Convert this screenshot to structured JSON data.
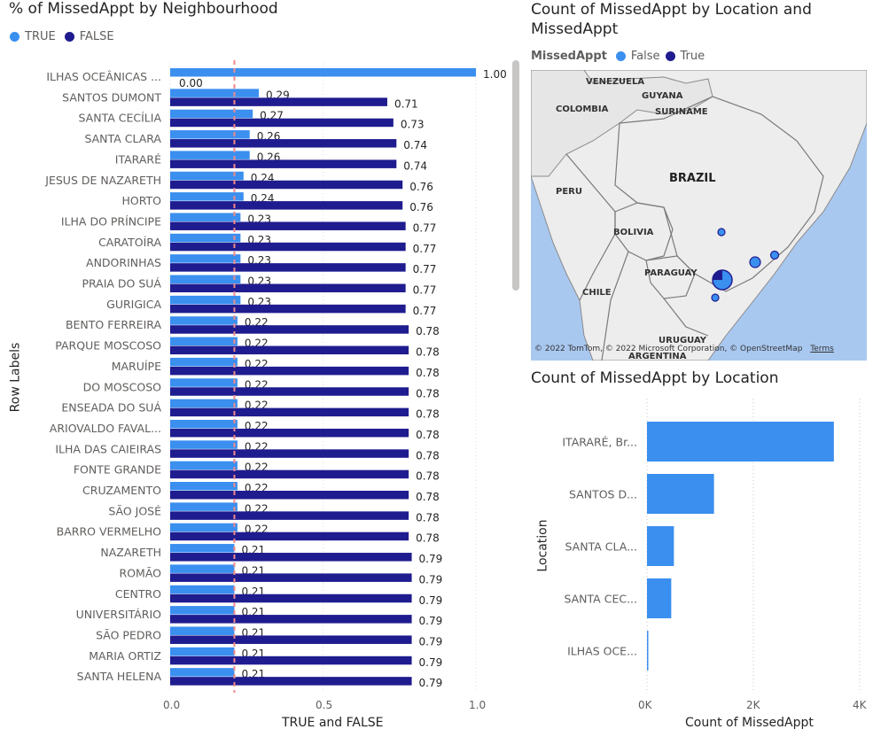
{
  "left_chart": {
    "title": "% of MissedAppt by Neighbourhood",
    "legend": [
      {
        "label": "TRUE",
        "color": "#3a8fef"
      },
      {
        "label": "FALSE",
        "color": "#1f1c8f"
      }
    ],
    "ylabel": "Row Labels",
    "xlabel": "TRUE and FALSE",
    "xticks": [
      "0.0",
      "0.5",
      "1.0"
    ]
  },
  "map": {
    "title": "Count of MissedAppt by Location and MissedAppt",
    "legend_title": "MissedAppt",
    "legend": [
      {
        "label": "False",
        "color": "#3a8fef"
      },
      {
        "label": "True",
        "color": "#1f1c8f"
      }
    ],
    "countries": [
      "VENEZUELA",
      "GUYANA",
      "SURINAME",
      "COLOMBIA",
      "BRAZIL",
      "PERU",
      "BOLIVIA",
      "PARAGUAY",
      "CHILE",
      "URUGUAY",
      "ARGENTINA"
    ],
    "copyright": "© 2022 TomTom, © 2022 Microsoft Corporation, © OpenStreetMap",
    "terms": "Terms"
  },
  "right_chart": {
    "title": "Count of MissedAppt by Location",
    "ylabel": "Location",
    "xlabel": "Count of MissedAppt",
    "xticks": [
      "0K",
      "2K",
      "4K"
    ]
  },
  "chart_data": [
    {
      "type": "bar",
      "orientation": "horizontal",
      "title": "% of MissedAppt by Neighbourhood",
      "xlabel": "TRUE and FALSE",
      "ylabel": "Row Labels",
      "xlim": [
        0,
        1
      ],
      "legend": "top-left",
      "categories": [
        "ILHAS OCEÂNICAS ...",
        "SANTOS DUMONT",
        "SANTA CECÍLIA",
        "SANTA CLARA",
        "ITARARÉ",
        "JESUS DE NAZARETH",
        "HORTO",
        "ILHA DO PRÍNCIPE",
        "CARATOÍRA",
        "ANDORINHAS",
        "PRAIA DO SUÁ",
        "GURIGICA",
        "BENTO FERREIRA",
        "PARQUE MOSCOSO",
        "MARUÍPE",
        "DO MOSCOSO",
        "ENSEADA DO SUÁ",
        "ARIOVALDO FAVAL...",
        "ILHA DAS CAIEIRAS",
        "FONTE GRANDE",
        "CRUZAMENTO",
        "SÃO JOSÉ",
        "BARRO VERMELHO",
        "NAZARETH",
        "ROMÃO",
        "CENTRO",
        "UNIVERSITÁRIO",
        "SÃO PEDRO",
        "MARIA ORTIZ",
        "SANTA HELENA"
      ],
      "series": [
        {
          "name": "TRUE",
          "values": [
            1.0,
            0.29,
            0.27,
            0.26,
            0.26,
            0.24,
            0.24,
            0.23,
            0.23,
            0.23,
            0.23,
            0.23,
            0.22,
            0.22,
            0.22,
            0.22,
            0.22,
            0.22,
            0.22,
            0.22,
            0.22,
            0.22,
            0.22,
            0.21,
            0.21,
            0.21,
            0.21,
            0.21,
            0.21,
            0.21
          ]
        },
        {
          "name": "FALSE",
          "values": [
            0.0,
            0.71,
            0.73,
            0.74,
            0.74,
            0.76,
            0.76,
            0.77,
            0.77,
            0.77,
            0.77,
            0.77,
            0.78,
            0.78,
            0.78,
            0.78,
            0.78,
            0.78,
            0.78,
            0.78,
            0.78,
            0.78,
            0.78,
            0.79,
            0.79,
            0.79,
            0.79,
            0.79,
            0.79,
            0.79
          ]
        }
      ],
      "reference_line": 0.21
    },
    {
      "type": "bar",
      "orientation": "horizontal",
      "title": "Count of MissedAppt by Location",
      "xlabel": "Count of MissedAppt",
      "ylabel": "Location",
      "xlim": [
        0,
        4000
      ],
      "categories": [
        "ITARARÉ, Br...",
        "SANTOS D...",
        "SANTA CLA...",
        "SANTA CEC...",
        "ILHAS OCE..."
      ],
      "values": [
        3514,
        1260,
        506,
        456,
        2
      ]
    }
  ]
}
